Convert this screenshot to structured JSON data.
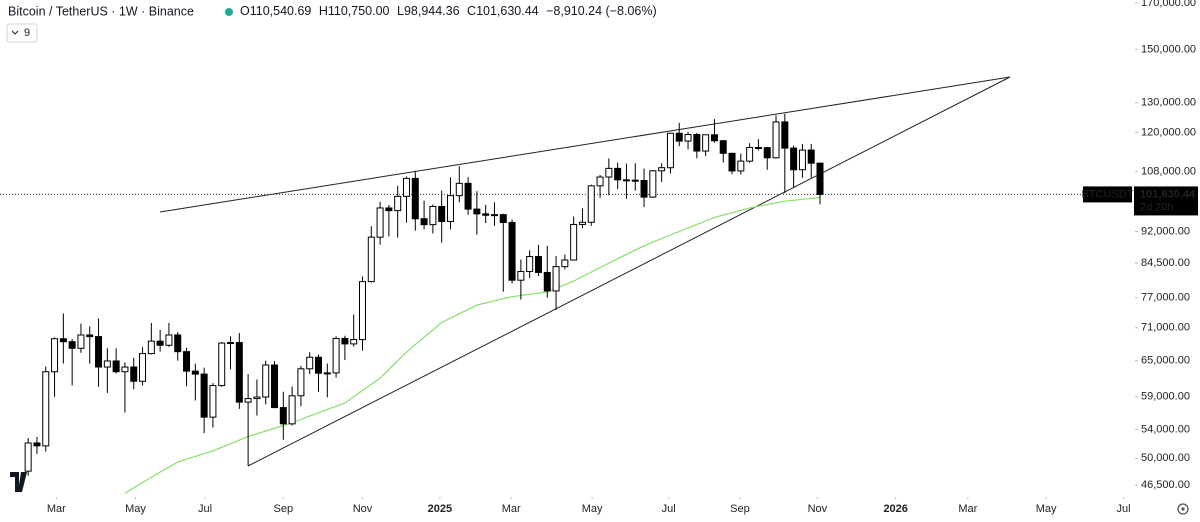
{
  "chart_data": {
    "type": "candlestick",
    "title": "Bitcoin / TetherUS · 1W · Binance",
    "ohlc_labels": [
      "O110,540.69",
      "H110,750.00",
      "L98,944.36",
      "C101,630.44",
      "−8,910.24 (−8.06%)"
    ],
    "indicator_label": "9",
    "log_scale": true,
    "grid": false,
    "up_color": "#ffffff",
    "down_color": "#000000",
    "wick_color": "#000000",
    "open": [
      48300,
      52100,
      51700,
      63100,
      68950,
      68400,
      67200,
      69650,
      69350,
      63900,
      64950,
      63100,
      63900,
      61500,
      66250,
      68500,
      67750,
      69650,
      66600,
      63200,
      62700,
      55850,
      60800,
      68150,
      68250,
      58150,
      58700,
      58950,
      64250,
      57300,
      54850,
      59150,
      63600,
      65600,
      62850,
      62900,
      69000,
      68000,
      68800,
      80400,
      90600,
      98000,
      97300,
      101100,
      106100,
      95200,
      93700,
      98400,
      94500,
      101300,
      104700,
      97700,
      96450,
      96100,
      96250,
      94250,
      80700,
      82600,
      86000,
      82400,
      78400,
      83700,
      85200,
      93750,
      94300,
      104000,
      106500,
      109000,
      105700,
      105600,
      105500,
      100900,
      108300,
      109200,
      119800,
      117300,
      119400,
      114200,
      119300,
      117400,
      113500,
      108250,
      111150,
      115300,
      115250,
      112150,
      123500,
      115100,
      108600,
      114500,
      110540.69
    ],
    "high": [
      52800,
      52950,
      64000,
      69200,
      73800,
      68900,
      71800,
      71300,
      72800,
      67200,
      67200,
      64700,
      65500,
      67400,
      71950,
      70600,
      71950,
      70200,
      67300,
      64500,
      63800,
      61200,
      68350,
      69400,
      70000,
      62700,
      61800,
      65000,
      64950,
      59800,
      60650,
      64100,
      66500,
      66100,
      64500,
      69400,
      69500,
      73600,
      81500,
      93300,
      99600,
      98800,
      104000,
      106650,
      108350,
      99950,
      98900,
      102700,
      106400,
      109600,
      106450,
      102500,
      98800,
      99500,
      96500,
      95000,
      85300,
      87450,
      88750,
      88500,
      86100,
      86450,
      95750,
      97900,
      104350,
      107100,
      111980,
      110700,
      110400,
      110550,
      108950,
      108500,
      110500,
      119900,
      123200,
      120250,
      119900,
      119300,
      124450,
      117650,
      113650,
      113400,
      116650,
      117900,
      115450,
      125700,
      126200,
      115900,
      116400,
      116400,
      110750
    ],
    "low": [
      47700,
      50600,
      50900,
      59000,
      64500,
      60800,
      66400,
      64500,
      60600,
      59600,
      62800,
      56550,
      60200,
      60800,
      66100,
      66600,
      67450,
      65000,
      60700,
      58400,
      53500,
      54300,
      60600,
      63500,
      57100,
      49000,
      56100,
      57800,
      57200,
      52550,
      54600,
      57500,
      62700,
      59800,
      58900,
      62100,
      65100,
      67500,
      66800,
      80200,
      88800,
      90800,
      90500,
      94200,
      92200,
      92500,
      91500,
      89250,
      92500,
      99500,
      96200,
      91200,
      94100,
      93400,
      78250,
      80000,
      76600,
      81200,
      81600,
      77000,
      74500,
      83100,
      85150,
      92800,
      93400,
      100700,
      101400,
      103100,
      100400,
      102650,
      98200,
      100700,
      105100,
      107500,
      115700,
      114700,
      112000,
      112650,
      116800,
      110700,
      107300,
      107250,
      110650,
      114400,
      108600,
      111900,
      102000,
      103500,
      106300,
      106300,
      98944.36
    ],
    "close": [
      52100,
      51700,
      63100,
      68950,
      68400,
      67200,
      69650,
      69350,
      63900,
      64950,
      63100,
      63900,
      61500,
      66250,
      68500,
      67750,
      69650,
      66600,
      63200,
      62700,
      55850,
      60800,
      68150,
      68250,
      58150,
      58700,
      58950,
      64250,
      57300,
      54850,
      59150,
      63600,
      65600,
      62850,
      62900,
      69000,
      68000,
      68800,
      80400,
      90600,
      98000,
      97300,
      101100,
      106100,
      95200,
      93700,
      98400,
      94500,
      101300,
      104700,
      97700,
      96450,
      96100,
      96250,
      94250,
      80700,
      82600,
      86000,
      82400,
      78400,
      83700,
      85200,
      93750,
      94300,
      104000,
      106500,
      109000,
      105700,
      105600,
      105500,
      100900,
      108300,
      109200,
      119800,
      117300,
      119400,
      114200,
      119300,
      117400,
      113500,
      108250,
      111150,
      115300,
      115250,
      112150,
      123500,
      115100,
      108600,
      114500,
      110540,
      101630.44
    ],
    "ma": {
      "color": "#86df6b",
      "values": [
        null,
        null,
        null,
        null,
        null,
        null,
        null,
        null,
        null,
        null,
        null,
        45500,
        46170,
        46830,
        47500,
        48170,
        48830,
        49500,
        49880,
        50250,
        50630,
        51000,
        51500,
        52000,
        52500,
        53000,
        53400,
        53800,
        54200,
        54600,
        55000,
        55500,
        56000,
        56500,
        57000,
        57500,
        58000,
        59000,
        60000,
        61000,
        62000,
        63500,
        65000,
        66500,
        67900,
        69250,
        70600,
        72000,
        72900,
        73750,
        74600,
        75500,
        75900,
        76350,
        76800,
        77200,
        77450,
        77700,
        77950,
        78200,
        78970,
        79730,
        80500,
        81500,
        82500,
        83500,
        84500,
        85500,
        86500,
        87500,
        88500,
        89380,
        90250,
        91130,
        92000,
        92880,
        93750,
        94630,
        95500,
        96130,
        96750,
        97380,
        98000,
        98450,
        98900,
        99350,
        99800,
        100050,
        100300,
        100550,
        100800
      ]
    },
    "last_price": {
      "symbol": "BTCUSDT",
      "value": 101630.44,
      "label": "101,630.44",
      "countdown": "2d 20h"
    },
    "ylim": [
      45300,
      171400
    ],
    "yticks": [
      {
        "value": 170000,
        "label": "170,000.00"
      },
      {
        "value": 150000,
        "label": "150,000.00"
      },
      {
        "value": 130000,
        "label": "130,000.00"
      },
      {
        "value": 120000,
        "label": "120,000.00"
      },
      {
        "value": 108000,
        "label": "108,000.00"
      },
      {
        "value": 92000,
        "label": "92,000.00"
      },
      {
        "value": 84500,
        "label": "84,500.00"
      },
      {
        "value": 77000,
        "label": "77,000.00"
      },
      {
        "value": 71000,
        "label": "71,000.00"
      },
      {
        "value": 65000,
        "label": "65,000.00"
      },
      {
        "value": 59000,
        "label": "59,000.00"
      },
      {
        "value": 54000,
        "label": "54,000.00"
      },
      {
        "value": 50000,
        "label": "50,000.00"
      },
      {
        "value": 46500,
        "label": "46,500.00"
      }
    ],
    "xlim": [
      -3.2,
      125.8
    ],
    "xticks": [
      {
        "value": 3.2,
        "label": "Mar"
      },
      {
        "value": 12.2,
        "label": "May"
      },
      {
        "value": 20.1,
        "label": "Jul"
      },
      {
        "value": 29.0,
        "label": "Sep"
      },
      {
        "value": 38.0,
        "label": "Nov"
      },
      {
        "value": 46.8,
        "label": "2025"
      },
      {
        "value": 54.9,
        "label": "Mar"
      },
      {
        "value": 64.1,
        "label": "May"
      },
      {
        "value": 72.8,
        "label": "Jul"
      },
      {
        "value": 80.9,
        "label": "Sep"
      },
      {
        "value": 89.7,
        "label": "Nov"
      },
      {
        "value": 98.6,
        "label": "2026"
      },
      {
        "value": 106.8,
        "label": "Mar"
      },
      {
        "value": 115.7,
        "label": "May"
      },
      {
        "value": 124.5,
        "label": "Jul"
      }
    ]
  }
}
